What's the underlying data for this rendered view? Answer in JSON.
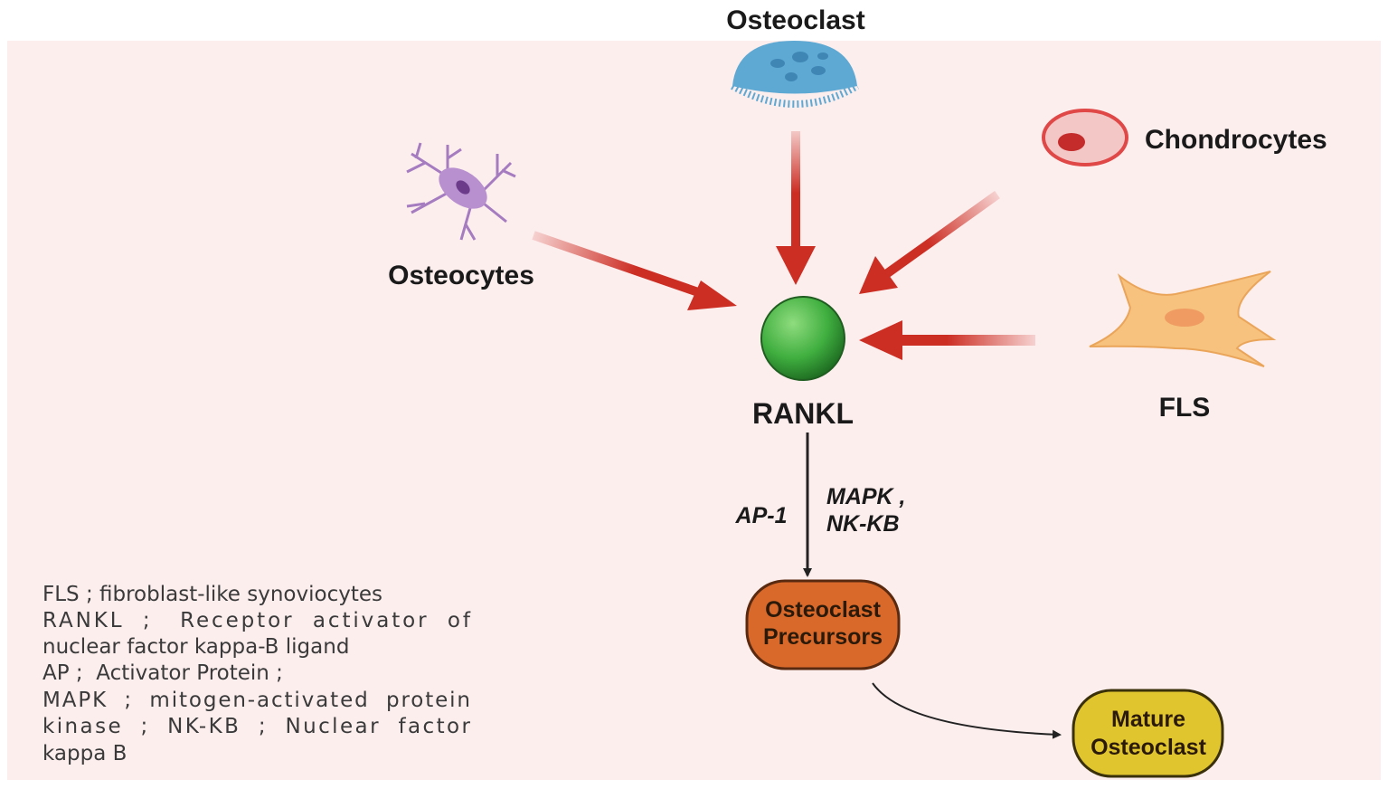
{
  "colors": {
    "panel": "#fdeeee",
    "arrow": "#cc2e24",
    "rankl": "#3fae3f",
    "precursor_box": "#d9692b",
    "mature_box": "#e0c52e"
  },
  "cells": {
    "osteoclast": "Osteoclast",
    "osteocytes": "Osteocytes",
    "chondrocytes": "Chondrocytes",
    "fls": "FLS",
    "rankl": "RANKL"
  },
  "pathway": {
    "left": "AP-1",
    "right_1": "MAPK ,",
    "right_2": "NK-KB"
  },
  "boxes": {
    "precursors_1": "Osteoclast",
    "precursors_2": "Precursors",
    "mature_1": "Mature",
    "mature_2": "Osteoclast"
  },
  "legend": [
    "FLS ;  fibroblast-like synoviocytes",
    "RANKL  ;   Receptor  activator  of",
    "nuclear factor kappa-B ligand",
    "AP ;  Activator Protein ;",
    "MAPK  ;  mitogen-activated  protein",
    "kinase  ;  NK-KB  ;  Nuclear  factor",
    "kappa B"
  ]
}
